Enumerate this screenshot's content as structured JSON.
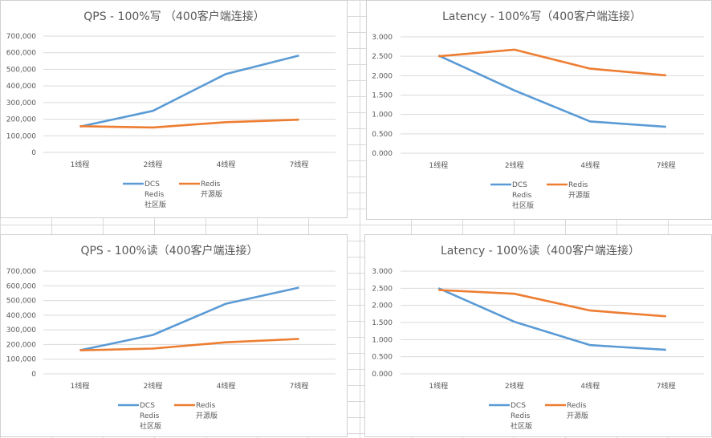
{
  "colors": {
    "dcs": "#5b9bd5",
    "redis": "#ed7d31",
    "grid": "#d9d9d9",
    "text": "#595959"
  },
  "chart_data": [
    {
      "type": "line",
      "title": "QPS - 100%写 （400客户端连接）",
      "categories": [
        "1线程",
        "2线程",
        "4线程",
        "7线程"
      ],
      "yticks": [
        "0",
        "100,000",
        "200,000",
        "300,000",
        "400,000",
        "500,000",
        "600,000",
        "700,000"
      ],
      "ylim": [
        0,
        700000
      ],
      "grid": true,
      "legend": "bottom",
      "series": [
        {
          "name": [
            "DCS",
            "Redis",
            "社区版"
          ],
          "values": [
            155000,
            250000,
            472000,
            583000
          ]
        },
        {
          "name": [
            "Redis",
            "开源版"
          ],
          "values": [
            158000,
            150000,
            182000,
            197000
          ]
        }
      ]
    },
    {
      "type": "line",
      "title": "Latency - 100%写（400客户端连接）",
      "categories": [
        "1线程",
        "2线程",
        "4线程",
        "7线程"
      ],
      "yticks": [
        "0.000",
        "0.500",
        "1.000",
        "1.500",
        "2.000",
        "2.500",
        "3.000"
      ],
      "ylim": [
        0,
        3
      ],
      "grid": true,
      "legend": "bottom",
      "series": [
        {
          "name": [
            "DCS",
            "Redis",
            "社区版"
          ],
          "values": [
            2.52,
            1.62,
            0.82,
            0.68
          ]
        },
        {
          "name": [
            "Redis",
            "开源版"
          ],
          "values": [
            2.5,
            2.67,
            2.18,
            2.01
          ]
        }
      ]
    },
    {
      "type": "line",
      "title": "QPS - 100%读（400客户端连接）",
      "categories": [
        "1线程",
        "2线程",
        "4线程",
        "7线程"
      ],
      "yticks": [
        "0",
        "100,000",
        "200,000",
        "300,000",
        "400,000",
        "500,000",
        "600,000",
        "700,000"
      ],
      "ylim": [
        0,
        700000
      ],
      "grid": true,
      "legend": "bottom",
      "series": [
        {
          "name": [
            "DCS",
            "Redis",
            "社区版"
          ],
          "values": [
            160000,
            265000,
            478000,
            588000
          ]
        },
        {
          "name": [
            "Redis",
            "开源版"
          ],
          "values": [
            160000,
            172000,
            215000,
            238000
          ]
        }
      ]
    },
    {
      "type": "line",
      "title": "Latency - 100%读（400客户端连接）",
      "categories": [
        "1线程",
        "2线程",
        "4线程",
        "7线程"
      ],
      "yticks": [
        "0.000",
        "0.500",
        "1.000",
        "1.500",
        "2.000",
        "2.500",
        "3.000"
      ],
      "ylim": [
        0,
        3
      ],
      "grid": true,
      "legend": "bottom",
      "series": [
        {
          "name": [
            "DCS",
            "Redis",
            "社区版"
          ],
          "values": [
            2.5,
            1.52,
            0.84,
            0.7
          ]
        },
        {
          "name": [
            "Redis",
            "开源版"
          ],
          "values": [
            2.45,
            2.34,
            1.85,
            1.68
          ]
        }
      ]
    }
  ]
}
